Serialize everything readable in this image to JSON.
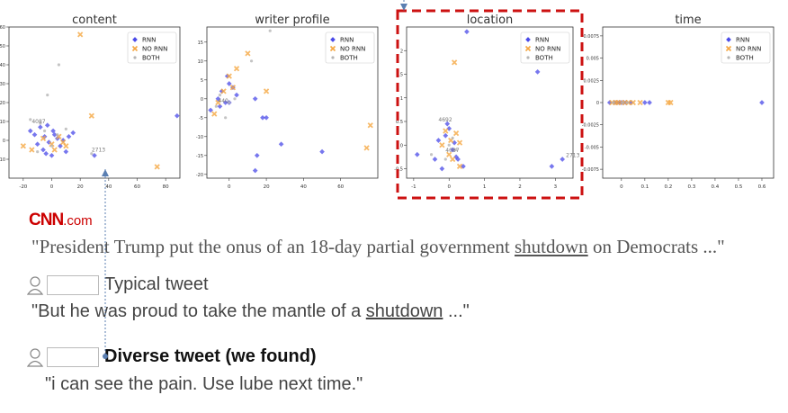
{
  "chart_data": [
    {
      "type": "scatter",
      "title": "content",
      "xlim": [
        -30,
        90
      ],
      "ylim": [
        -20,
        60
      ],
      "xticks": [
        -20,
        0,
        20,
        40,
        60,
        80
      ],
      "yticks": [
        -10,
        0,
        10,
        20,
        30,
        40,
        50,
        60
      ],
      "legend": "top-right",
      "series": [
        {
          "name": "RNN",
          "points": [
            [
              -15,
              5
            ],
            [
              -12,
              3
            ],
            [
              -10,
              -2
            ],
            [
              -8,
              7
            ],
            [
              -6,
              -5
            ],
            [
              -5,
              2
            ],
            [
              -3,
              8
            ],
            [
              -2,
              -1
            ],
            [
              0,
              -8
            ],
            [
              2,
              3
            ],
            [
              4,
              1
            ],
            [
              6,
              -3
            ],
            [
              8,
              0
            ],
            [
              10,
              -6
            ],
            [
              12,
              2
            ],
            [
              15,
              4
            ],
            [
              -4,
              -7
            ],
            [
              1,
              5
            ],
            [
              30,
              -8
            ],
            [
              88,
              13
            ]
          ]
        },
        {
          "name": "NO RNN",
          "points": [
            [
              -20,
              -3
            ],
            [
              -14,
              -5
            ],
            [
              -6,
              1
            ],
            [
              0,
              -2
            ],
            [
              2,
              -5
            ],
            [
              5,
              2
            ],
            [
              8,
              -1
            ],
            [
              10,
              -3
            ],
            [
              20,
              56
            ],
            [
              28,
              13
            ],
            [
              74,
              -14
            ]
          ]
        },
        {
          "name": "BOTH",
          "points": [
            [
              -15,
              11
            ],
            [
              -8,
              9
            ],
            [
              -3,
              24
            ],
            [
              5,
              40
            ],
            [
              10,
              6
            ],
            [
              -10,
              -6
            ],
            [
              0,
              -3
            ],
            [
              28,
              -7
            ],
            [
              4,
              3
            ],
            [
              -5,
              5
            ]
          ]
        }
      ],
      "annotations": [
        "4087",
        "2713"
      ]
    },
    {
      "type": "scatter",
      "title": "writer profile",
      "xlim": [
        -12,
        80
      ],
      "ylim": [
        -21,
        19
      ],
      "xticks": [
        0,
        20,
        40,
        60
      ],
      "yticks": [
        -20,
        -15,
        -10,
        -5,
        0,
        5,
        10,
        15
      ],
      "legend": "top-right",
      "series": [
        {
          "name": "RNN",
          "points": [
            [
              -10,
              -3
            ],
            [
              -6,
              0
            ],
            [
              -4,
              2
            ],
            [
              -2,
              -1
            ],
            [
              0,
              4
            ],
            [
              2,
              3
            ],
            [
              4,
              1
            ],
            [
              -5,
              -2
            ],
            [
              0,
              -1
            ],
            [
              14,
              -19
            ],
            [
              15,
              -15
            ],
            [
              18,
              -5
            ],
            [
              20,
              -5
            ],
            [
              28,
              -12
            ],
            [
              50,
              -14
            ],
            [
              58,
              12
            ],
            [
              14,
              0
            ],
            [
              -1,
              6
            ]
          ]
        },
        {
          "name": "NO RNN",
          "points": [
            [
              -8,
              -4
            ],
            [
              -6,
              -1
            ],
            [
              -3,
              2
            ],
            [
              0,
              6
            ],
            [
              2,
              3
            ],
            [
              4,
              8
            ],
            [
              10,
              12
            ],
            [
              20,
              2
            ],
            [
              76,
              -7
            ],
            [
              74,
              -13
            ]
          ]
        },
        {
          "name": "BOTH",
          "points": [
            [
              -7,
              -2
            ],
            [
              -5,
              1
            ],
            [
              0,
              -1
            ],
            [
              3,
              0
            ],
            [
              22,
              18
            ],
            [
              12,
              10
            ],
            [
              -2,
              -5
            ]
          ]
        }
      ],
      "annotations": [
        "440"
      ]
    },
    {
      "type": "scatter",
      "title": "location",
      "xlim": [
        -1.2,
        3.5
      ],
      "ylim": [
        -0.7,
        2.5
      ],
      "xticks": [
        -1,
        0,
        1,
        2,
        3
      ],
      "yticks": [
        -0.5,
        0.0,
        0.5,
        1.0,
        1.5,
        2.0
      ],
      "legend": "top-right",
      "series": [
        {
          "name": "RNN",
          "points": [
            [
              -0.9,
              -0.2
            ],
            [
              -0.4,
              -0.3
            ],
            [
              -0.3,
              0.1
            ],
            [
              -0.2,
              -0.5
            ],
            [
              -0.1,
              0.2
            ],
            [
              0.0,
              0.35
            ],
            [
              0.1,
              -0.1
            ],
            [
              0.15,
              0.05
            ],
            [
              0.25,
              -0.3
            ],
            [
              0.4,
              -0.45
            ],
            [
              0.5,
              2.4
            ],
            [
              2.5,
              1.55
            ],
            [
              2.9,
              -0.45
            ],
            [
              3.2,
              -0.3
            ],
            [
              -0.05,
              0.45
            ],
            [
              0.2,
              -0.25
            ]
          ]
        },
        {
          "name": "NO RNN",
          "points": [
            [
              -0.1,
              0.3
            ],
            [
              0.0,
              -0.2
            ],
            [
              0.05,
              0.1
            ],
            [
              0.1,
              -0.3
            ],
            [
              0.2,
              0.25
            ],
            [
              0.3,
              0.05
            ],
            [
              0.15,
              1.75
            ],
            [
              -0.2,
              0.0
            ],
            [
              0.3,
              -0.45
            ]
          ]
        },
        {
          "name": "BOTH",
          "points": [
            [
              -0.5,
              -0.2
            ],
            [
              0.0,
              0.0
            ],
            [
              0.1,
              0.15
            ],
            [
              -0.1,
              -0.3
            ],
            [
              0.2,
              -0.1
            ]
          ]
        }
      ],
      "annotations": [
        "4692",
        "4087",
        "2713"
      ]
    },
    {
      "type": "scatter",
      "title": "time",
      "xlim": [
        -0.08,
        0.65
      ],
      "ylim": [
        -0.0085,
        0.0085
      ],
      "xticks": [
        0.0,
        0.1,
        0.2,
        0.3,
        0.4,
        0.5,
        0.6
      ],
      "yticks": [
        -0.0075,
        -0.005,
        -0.0025,
        0.0,
        0.0025,
        0.005,
        0.0075
      ],
      "legend": "top-right",
      "series": [
        {
          "name": "RNN",
          "points": [
            [
              -0.05,
              0
            ],
            [
              -0.03,
              0
            ],
            [
              -0.02,
              0
            ],
            [
              -0.01,
              0
            ],
            [
              0.0,
              0
            ],
            [
              0.01,
              0
            ],
            [
              0.02,
              0
            ],
            [
              0.04,
              0
            ],
            [
              0.1,
              0
            ],
            [
              0.12,
              0
            ],
            [
              0.6,
              0
            ]
          ]
        },
        {
          "name": "NO RNN",
          "points": [
            [
              -0.04,
              0
            ],
            [
              -0.025,
              0
            ],
            [
              -0.015,
              0
            ],
            [
              0.0,
              0
            ],
            [
              0.015,
              0
            ],
            [
              0.03,
              0
            ],
            [
              0.05,
              0
            ],
            [
              0.08,
              0
            ],
            [
              0.2,
              0
            ],
            [
              0.21,
              0
            ]
          ]
        },
        {
          "name": "BOTH",
          "points": [
            [
              -0.035,
              0
            ],
            [
              0.005,
              0
            ],
            [
              0.025,
              0
            ]
          ]
        }
      ],
      "annotations": []
    }
  ],
  "colors": {
    "rnn": "#4a4ae8",
    "no_rnn": "#f5a742",
    "both": "#b5b5b5",
    "highlight_box": "#cc1111",
    "connector": "#5b7fb2"
  },
  "source": {
    "logo_text": "CNN",
    "logo_suffix": ".com",
    "quote_prefix": "\"President Trump put the onus of an 18-day partial government ",
    "quote_keyword": "shutdown",
    "quote_suffix": " on Democrats ...\""
  },
  "typical_tweet": {
    "label": "Typical tweet",
    "text_prefix": "\"But he was proud to take the mantle of a ",
    "keyword": "shutdown",
    "text_suffix": " ...\""
  },
  "diverse_tweet": {
    "label": "Diverse tweet (we found)",
    "text": "\"i can see the pain. Use lube next time.\""
  }
}
